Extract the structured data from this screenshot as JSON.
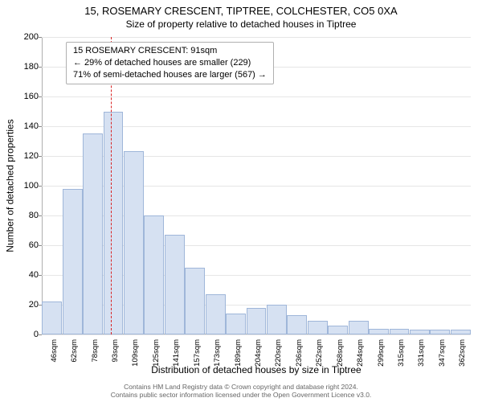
{
  "titles": {
    "main": "15, ROSEMARY CRESCENT, TIPTREE, COLCHESTER, CO5 0XA",
    "sub": "Size of property relative to detached houses in Tiptree"
  },
  "legend": {
    "line1": "15 ROSEMARY CRESCENT: 91sqm",
    "line2": "← 29% of detached houses are smaller (229)",
    "line3": "71% of semi-detached houses are larger (567) →"
  },
  "axes": {
    "y_label": "Number of detached properties",
    "x_label": "Distribution of detached houses by size in Tiptree",
    "ylim": [
      0,
      200
    ],
    "y_ticks": [
      0,
      20,
      40,
      60,
      80,
      100,
      120,
      140,
      160,
      180,
      200
    ],
    "x_tick_labels": [
      "46sqm",
      "62sqm",
      "78sqm",
      "93sqm",
      "109sqm",
      "125sqm",
      "141sqm",
      "157sqm",
      "173sqm",
      "189sqm",
      "204sqm",
      "220sqm",
      "236sqm",
      "252sqm",
      "268sqm",
      "284sqm",
      "299sqm",
      "315sqm",
      "331sqm",
      "347sqm",
      "362sqm"
    ]
  },
  "bars": {
    "values": [
      22,
      98,
      135,
      150,
      123,
      80,
      67,
      45,
      27,
      14,
      18,
      20,
      13,
      9,
      6,
      9,
      4,
      4,
      3,
      3,
      3
    ],
    "fill_color": "#d6e1f2",
    "border_color": "#9fb6d9",
    "width_fraction": 0.98
  },
  "marker": {
    "index_position": 2.87,
    "color": "#d92323"
  },
  "style": {
    "grid_color": "#e6e6e6",
    "background_color": "#ffffff",
    "axis_color": "#b0b0b0",
    "text_color": "#000000",
    "footer_color": "#666666"
  },
  "footer": {
    "line1": "Contains HM Land Registry data © Crown copyright and database right 2024.",
    "line2": "Contains public sector information licensed under the Open Government Licence v3.0."
  }
}
